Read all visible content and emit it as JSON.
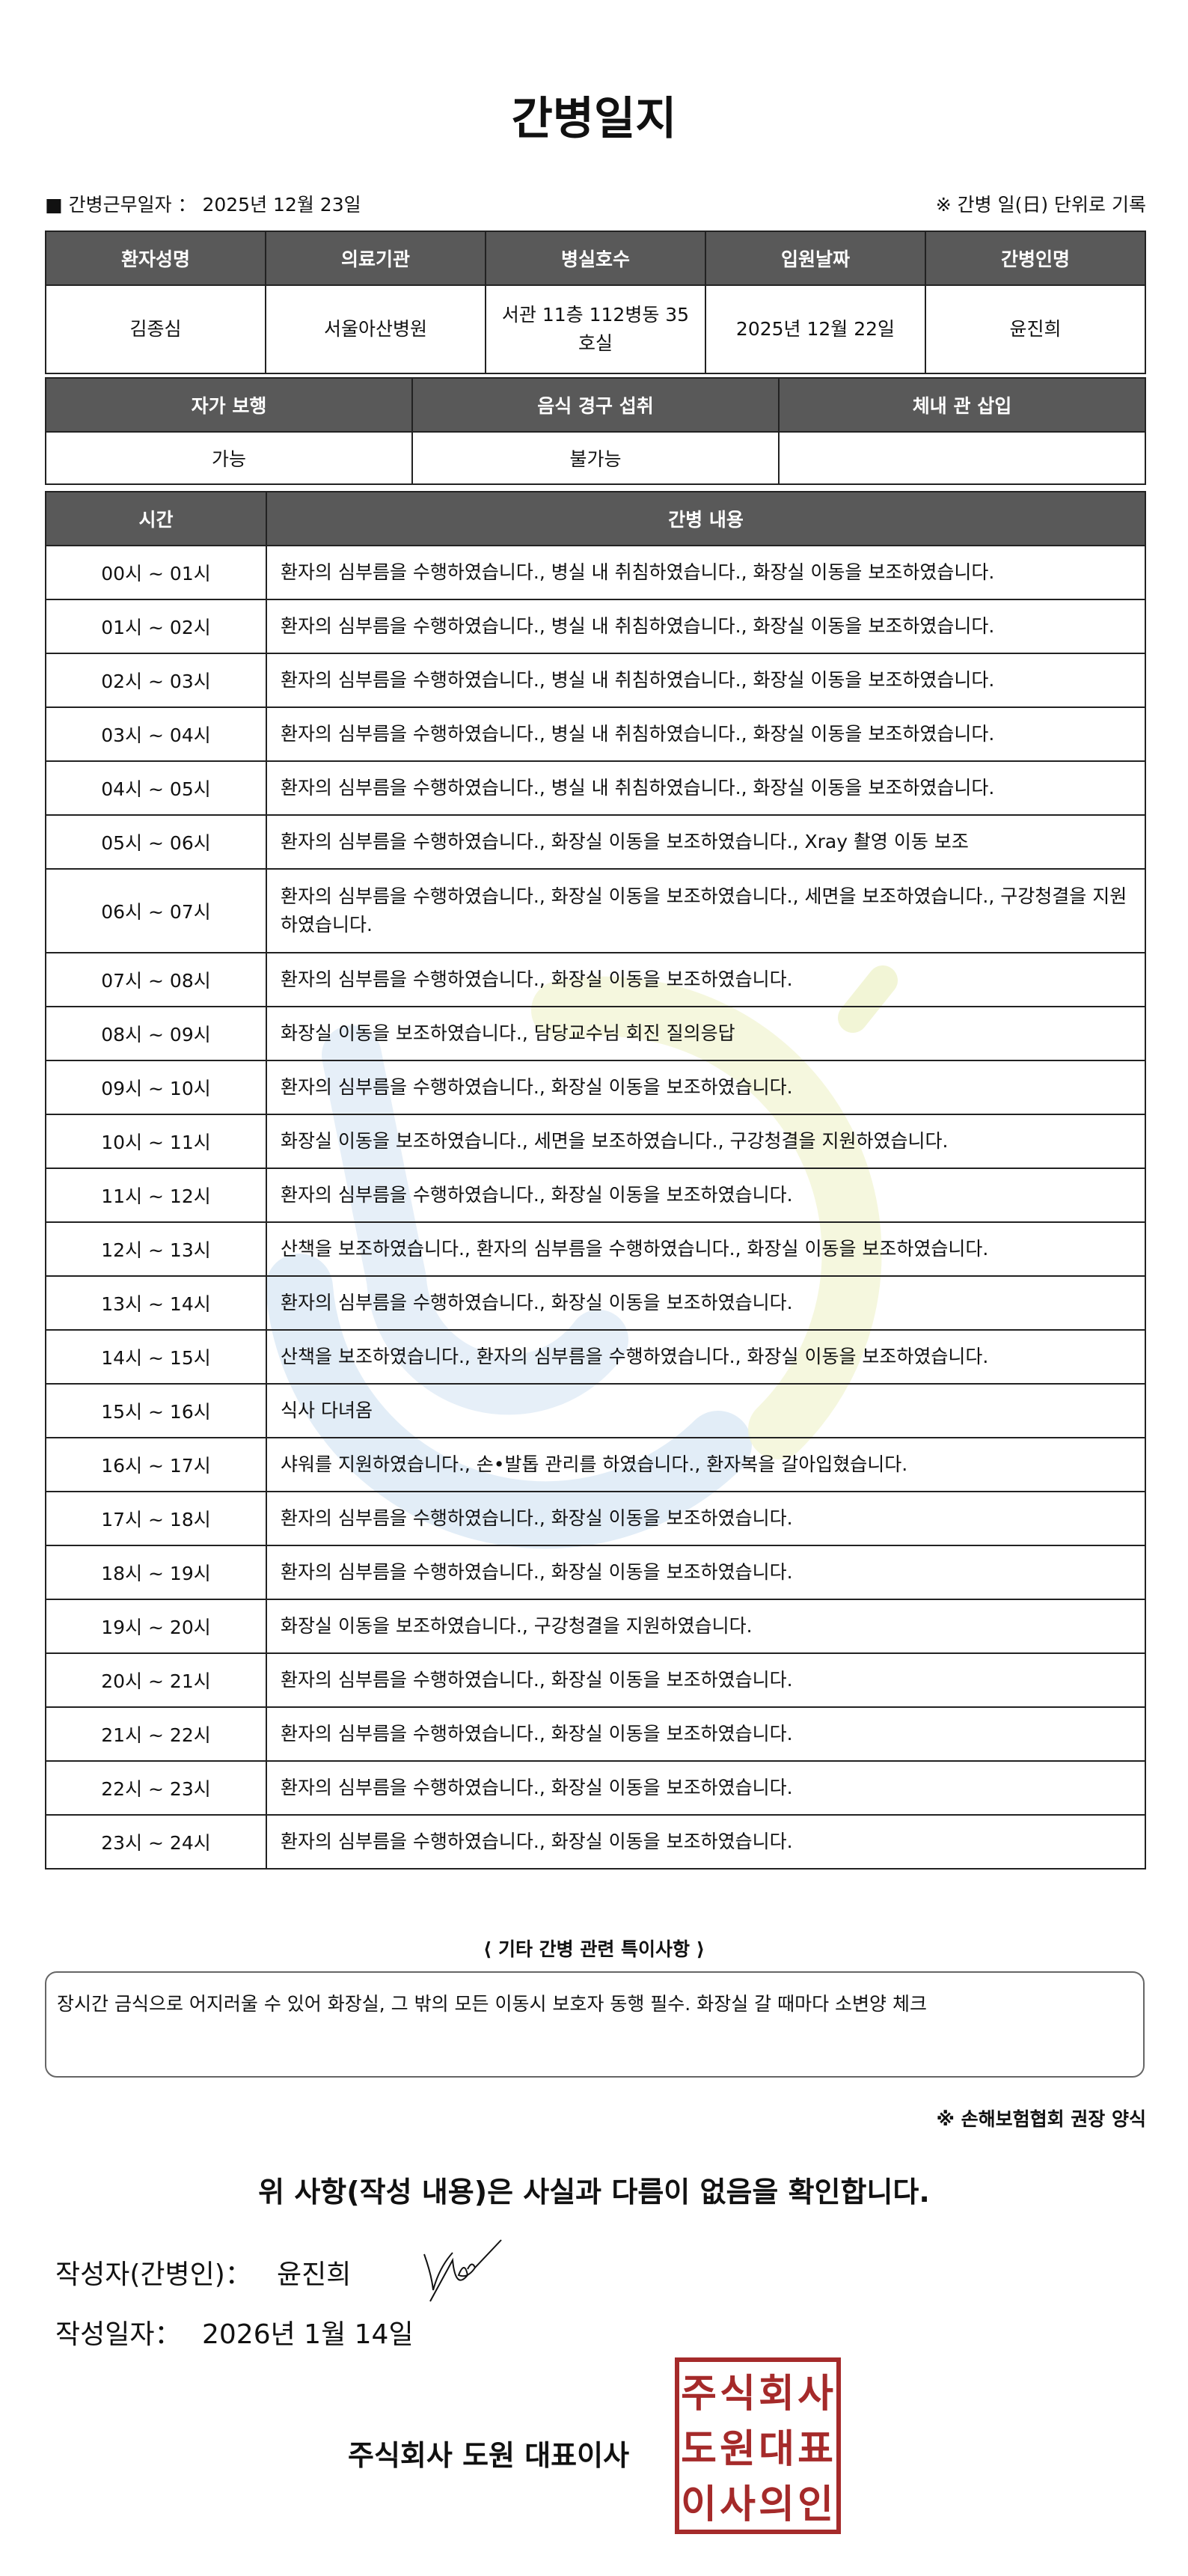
{
  "title": "간병일지",
  "work_date_label": "■ 간병근무일자 ：",
  "work_date": "2025년 12월 23일",
  "record_note": "※ 간병 일(日) 단위로 기록",
  "patient_table": {
    "headers": [
      "환자성명",
      "의료기관",
      "병실호수",
      "입원날짜",
      "간병인명"
    ],
    "values": [
      "김종심",
      "서울아산병원",
      "서관 11층 112병동 35호실",
      "2025년 12월 22일",
      "윤진희"
    ]
  },
  "status_table": {
    "headers": [
      "자가 보행",
      "음식 경구 섭취",
      "체내 관 삽입"
    ],
    "values": [
      "가능",
      "불가능",
      ""
    ]
  },
  "log_table": {
    "headers": [
      "시간",
      "간병 내용"
    ],
    "rows": [
      {
        "time": "00시 ~ 01시",
        "content": "환자의 심부름을 수행하였습니다., 병실 내 취침하였습니다., 화장실 이동을 보조하였습니다."
      },
      {
        "time": "01시 ~ 02시",
        "content": "환자의 심부름을 수행하였습니다., 병실 내 취침하였습니다., 화장실 이동을 보조하였습니다."
      },
      {
        "time": "02시 ~ 03시",
        "content": "환자의 심부름을 수행하였습니다., 병실 내 취침하였습니다., 화장실 이동을 보조하였습니다."
      },
      {
        "time": "03시 ~ 04시",
        "content": "환자의 심부름을 수행하였습니다., 병실 내 취침하였습니다., 화장실 이동을 보조하였습니다."
      },
      {
        "time": "04시 ~ 05시",
        "content": "환자의 심부름을 수행하였습니다., 병실 내 취침하였습니다., 화장실 이동을 보조하였습니다."
      },
      {
        "time": "05시 ~ 06시",
        "content": "환자의 심부름을 수행하였습니다., 화장실 이동을 보조하였습니다., Xray 촬영 이동 보조"
      },
      {
        "time": "06시 ~ 07시",
        "content": "환자의 심부름을 수행하였습니다., 화장실 이동을 보조하였습니다., 세면을 보조하였습니다., 구강청결을 지원하였습니다."
      },
      {
        "time": "07시 ~ 08시",
        "content": "환자의 심부름을 수행하였습니다., 화장실 이동을 보조하였습니다."
      },
      {
        "time": "08시 ~ 09시",
        "content": "화장실 이동을 보조하였습니다., 담당교수님 회진 질의응답"
      },
      {
        "time": "09시 ~ 10시",
        "content": "환자의 심부름을 수행하였습니다., 화장실 이동을 보조하였습니다."
      },
      {
        "time": "10시 ~ 11시",
        "content": "화장실 이동을 보조하였습니다., 세면을 보조하였습니다., 구강청결을 지원하였습니다."
      },
      {
        "time": "11시 ~ 12시",
        "content": "환자의 심부름을 수행하였습니다., 화장실 이동을 보조하였습니다."
      },
      {
        "time": "12시 ~ 13시",
        "content": "산책을 보조하였습니다., 환자의 심부름을 수행하였습니다., 화장실 이동을 보조하였습니다."
      },
      {
        "time": "13시 ~ 14시",
        "content": "환자의 심부름을 수행하였습니다., 화장실 이동을 보조하였습니다."
      },
      {
        "time": "14시 ~ 15시",
        "content": "산책을 보조하였습니다., 환자의 심부름을 수행하였습니다., 화장실 이동을 보조하였습니다."
      },
      {
        "time": "15시 ~ 16시",
        "content": "식사 다녀옴"
      },
      {
        "time": "16시 ~ 17시",
        "content": "샤워를 지원하였습니다., 손•발톱 관리를 하였습니다., 환자복을 갈아입혔습니다."
      },
      {
        "time": "17시 ~ 18시",
        "content": "환자의 심부름을 수행하였습니다., 화장실 이동을 보조하였습니다."
      },
      {
        "time": "18시 ~ 19시",
        "content": "환자의 심부름을 수행하였습니다., 화장실 이동을 보조하였습니다."
      },
      {
        "time": "19시 ~ 20시",
        "content": "화장실 이동을 보조하였습니다., 구강청결을 지원하였습니다."
      },
      {
        "time": "20시 ~ 21시",
        "content": "환자의 심부름을 수행하였습니다., 화장실 이동을 보조하였습니다."
      },
      {
        "time": "21시 ~ 22시",
        "content": "환자의 심부름을 수행하였습니다., 화장실 이동을 보조하였습니다."
      },
      {
        "time": "22시 ~ 23시",
        "content": "환자의 심부름을 수행하였습니다., 화장실 이동을 보조하였습니다."
      },
      {
        "time": "23시 ~ 24시",
        "content": "환자의 심부름을 수행하였습니다., 화장실 이동을 보조하였습니다."
      }
    ]
  },
  "notes": {
    "label": "⟨ 기타 간병 관련 특이사항 ⟩",
    "text": "장시간 금식으로 어지러울 수 있어 화장실, 그 밖의 모든 이동시 보호자 동행 필수. 화장실 갈 때마다 소변양 체크"
  },
  "form_note": "※ 손해보험협회 권장 양식",
  "confirmation": "위 사항(작성 내용)은 사실과 다름이 없음을 확인합니다.",
  "author": {
    "label": "작성자(간병인)：",
    "name": "윤진희"
  },
  "written_date": {
    "label": "작성일자：",
    "value": "2026년 1월 14일"
  },
  "company": "주식회사 도원   대표이사",
  "stamp_text": "주식회사도원대표이사의인",
  "colors": {
    "header_bg": "#595959",
    "stamp": "#a52a2a",
    "watermark_blue": "#dbe8f5",
    "watermark_yellow": "#f4f6d8"
  }
}
